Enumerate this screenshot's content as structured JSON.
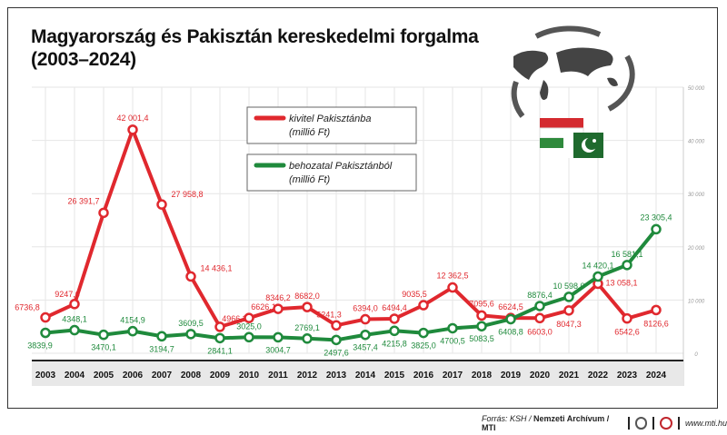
{
  "title_line1": "Magyarország és Pakisztán kereskedelmi forgalma",
  "title_line2": "(2003–2024)",
  "chart_data": {
    "type": "line",
    "categories": [
      "2003",
      "2004",
      "2005",
      "2006",
      "2007",
      "2008",
      "2009",
      "2010",
      "2011",
      "2012",
      "2013",
      "2014",
      "2015",
      "2016",
      "2017",
      "2018",
      "2019",
      "2020",
      "2021",
      "2022",
      "2023",
      "2024"
    ],
    "series": [
      {
        "name": "kivitel Pakisztánba",
        "unit": "(millió Ft)",
        "color": "#e0282e",
        "values": [
          6736.8,
          9247.6,
          26391.7,
          42001.4,
          27958.8,
          14436.1,
          4966.3,
          6626.1,
          8346.2,
          8682.0,
          5241.3,
          6394.0,
          6494.4,
          9035.5,
          12362.5,
          7095.6,
          6624.5,
          6603.0,
          8047.3,
          13058.1,
          6542.6,
          8126.6
        ],
        "labels": [
          "6736,8",
          "9247,6",
          "26 391,7",
          "42 001,4",
          "27 958,8",
          "14 436,1",
          "4966,3",
          "6626,1",
          "8346,2",
          "8682,0",
          "5241,3",
          "6394,0",
          "6494,4",
          "9035,5",
          "12 362,5",
          "7095,6",
          "6624,5",
          "6603,0",
          "8047,3",
          "13 058,1",
          "6542,6",
          "8126,6"
        ]
      },
      {
        "name": "behozatal Pakisztánból",
        "unit": "(millió Ft)",
        "color": "#1f8a3c",
        "values": [
          3839.9,
          4348.1,
          3470.1,
          4154.9,
          3194.7,
          3609.5,
          2841.1,
          3025.0,
          3004.7,
          2769.1,
          2497.6,
          3457.4,
          4215.8,
          3825.0,
          4700.5,
          5083.5,
          6408.8,
          8876.4,
          10598.0,
          14420.1,
          16581.1,
          23305.4
        ],
        "labels": [
          "3839,9",
          "4348,1",
          "3470,1",
          "4154,9",
          "3194,7",
          "3609,5",
          "2841,1",
          "3025,0",
          "3004,7",
          "2769,1",
          "2497,6",
          "3457,4",
          "4215,8",
          "3825,0",
          "4700,5",
          "5083,5",
          "6408,8",
          "8876,4",
          "10 598,0",
          "14 420,1",
          "16 581,1",
          "23 305,4"
        ]
      }
    ],
    "ylim": [
      0,
      50000
    ],
    "yticks": [
      0,
      10000,
      20000,
      30000,
      40000,
      50000
    ],
    "ytick_labels": [
      "0",
      "10 000",
      "20 000",
      "30 000",
      "40 000",
      "50 000"
    ],
    "grid": true,
    "legend": "top-center"
  },
  "footer": {
    "source_prefix": "Forrás: KSH / ",
    "source_bold": "Nemzeti Archívum / MTI",
    "url": "www.mti.hu"
  }
}
